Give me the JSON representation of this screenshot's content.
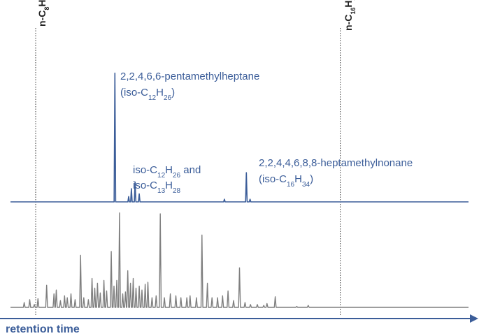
{
  "chart_data": {
    "type": "line",
    "xlabel": "retention time",
    "colors": {
      "top_trace": "#3b5d99",
      "bottom_trace": "#7f7f7f",
      "axis": "#3b5d99",
      "labels": "#3b5d99",
      "ref_lines": "#333333"
    },
    "reference_markers": [
      {
        "label_prefix": "n-C",
        "sub1": "8",
        "mid": "H",
        "sub2": "18",
        "x": 0.055
      },
      {
        "label_prefix": "n-C",
        "sub1": "16",
        "mid": "H",
        "sub2": "34",
        "x": 0.72
      }
    ],
    "series": [
      {
        "peaks": [
          {
            "x": 0.228,
            "h": 0.97
          },
          {
            "x": 0.258,
            "h": 0.04
          },
          {
            "x": 0.264,
            "h": 0.1
          },
          {
            "x": 0.272,
            "h": 0.15
          },
          {
            "x": 0.281,
            "h": 0.06
          },
          {
            "x": 0.467,
            "h": 0.02
          },
          {
            "x": 0.515,
            "h": 0.22
          },
          {
            "x": 0.523,
            "h": 0.02
          }
        ]
      },
      {
        "peaks": [
          {
            "x": 0.03,
            "h": 0.05
          },
          {
            "x": 0.042,
            "h": 0.08
          },
          {
            "x": 0.052,
            "h": 0.03
          },
          {
            "x": 0.06,
            "h": 0.09
          },
          {
            "x": 0.079,
            "h": 0.23
          },
          {
            "x": 0.095,
            "h": 0.14
          },
          {
            "x": 0.1,
            "h": 0.18
          },
          {
            "x": 0.109,
            "h": 0.07
          },
          {
            "x": 0.118,
            "h": 0.12
          },
          {
            "x": 0.124,
            "h": 0.1
          },
          {
            "x": 0.132,
            "h": 0.14
          },
          {
            "x": 0.141,
            "h": 0.08
          },
          {
            "x": 0.153,
            "h": 0.54
          },
          {
            "x": 0.16,
            "h": 0.1
          },
          {
            "x": 0.17,
            "h": 0.08
          },
          {
            "x": 0.178,
            "h": 0.3
          },
          {
            "x": 0.184,
            "h": 0.2
          },
          {
            "x": 0.19,
            "h": 0.25
          },
          {
            "x": 0.196,
            "h": 0.15
          },
          {
            "x": 0.204,
            "h": 0.28
          },
          {
            "x": 0.21,
            "h": 0.17
          },
          {
            "x": 0.22,
            "h": 0.58
          },
          {
            "x": 0.226,
            "h": 0.22
          },
          {
            "x": 0.232,
            "h": 0.28
          },
          {
            "x": 0.238,
            "h": 0.98
          },
          {
            "x": 0.245,
            "h": 0.14
          },
          {
            "x": 0.251,
            "h": 0.16
          },
          {
            "x": 0.256,
            "h": 0.38
          },
          {
            "x": 0.262,
            "h": 0.25
          },
          {
            "x": 0.268,
            "h": 0.3
          },
          {
            "x": 0.274,
            "h": 0.2
          },
          {
            "x": 0.281,
            "h": 0.22
          },
          {
            "x": 0.287,
            "h": 0.18
          },
          {
            "x": 0.294,
            "h": 0.24
          },
          {
            "x": 0.3,
            "h": 0.26
          },
          {
            "x": 0.309,
            "h": 0.1
          },
          {
            "x": 0.318,
            "h": 0.12
          },
          {
            "x": 0.327,
            "h": 0.97
          },
          {
            "x": 0.336,
            "h": 0.1
          },
          {
            "x": 0.349,
            "h": 0.14
          },
          {
            "x": 0.361,
            "h": 0.12
          },
          {
            "x": 0.372,
            "h": 0.1
          },
          {
            "x": 0.385,
            "h": 0.1
          },
          {
            "x": 0.392,
            "h": 0.12
          },
          {
            "x": 0.406,
            "h": 0.1
          },
          {
            "x": 0.418,
            "h": 0.75
          },
          {
            "x": 0.43,
            "h": 0.25
          },
          {
            "x": 0.44,
            "h": 0.1
          },
          {
            "x": 0.452,
            "h": 0.1
          },
          {
            "x": 0.463,
            "h": 0.12
          },
          {
            "x": 0.475,
            "h": 0.17
          },
          {
            "x": 0.487,
            "h": 0.07
          },
          {
            "x": 0.5,
            "h": 0.41
          },
          {
            "x": 0.512,
            "h": 0.05
          },
          {
            "x": 0.524,
            "h": 0.03
          },
          {
            "x": 0.539,
            "h": 0.03
          },
          {
            "x": 0.553,
            "h": 0.02
          },
          {
            "x": 0.56,
            "h": 0.04
          },
          {
            "x": 0.578,
            "h": 0.11
          },
          {
            "x": 0.625,
            "h": 0.01
          },
          {
            "x": 0.65,
            "h": 0.02
          }
        ]
      }
    ],
    "annotations": [
      {
        "lines": [
          {
            "text": "2,2,4,6,6-pentamethylheptane"
          },
          {
            "pre": "(iso-C",
            "s1": "12",
            "mid": "H",
            "s2": "26",
            "post": ")"
          }
        ]
      },
      {
        "lines": [
          {
            "pre": "iso-C",
            "s1": "12",
            "mid": "H",
            "s2": "26",
            "post": " and"
          },
          {
            "pre": "iso-C",
            "s1": "13",
            "mid": "H",
            "s2": "28",
            "post": ""
          }
        ]
      },
      {
        "lines": [
          {
            "text": "2,2,4,4,6,8,8-heptamethylnonane"
          },
          {
            "pre": "(iso-C",
            "s1": "16",
            "mid": "H",
            "s2": "34",
            "post": ")"
          }
        ]
      }
    ]
  }
}
